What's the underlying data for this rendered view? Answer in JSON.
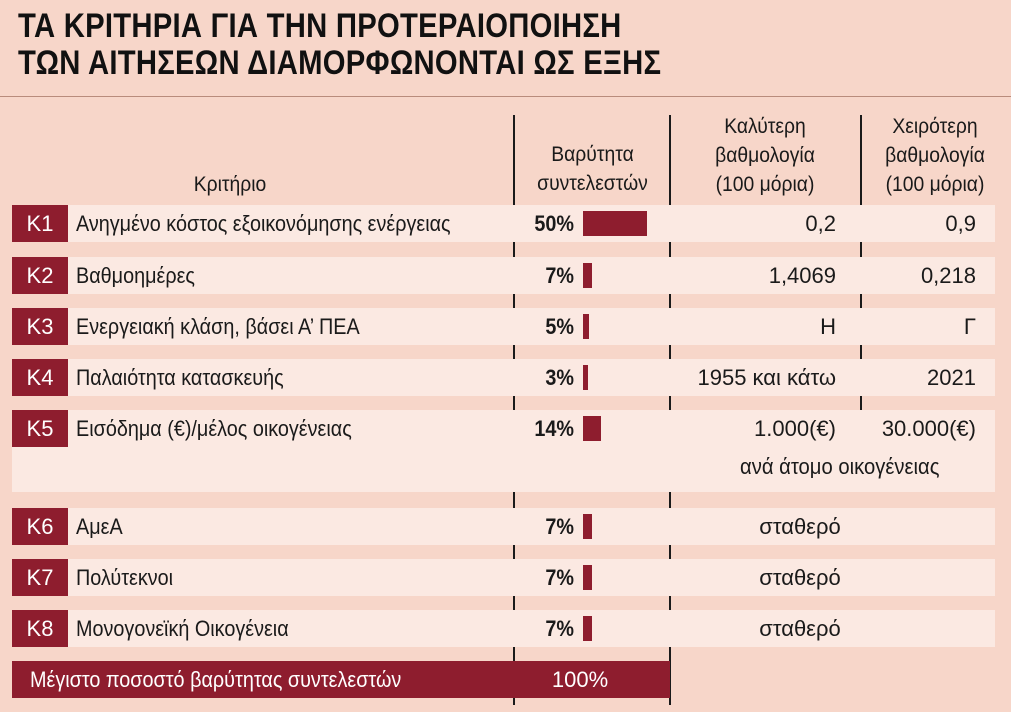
{
  "title": {
    "line1": "ΤΑ ΚΡΙΤΗΡΙΑ ΓΙΑ ΤΗΝ ΠΡΟΤΕΡΑΙΟΠΟΙΗΣΗ",
    "line2": "ΤΩΝ ΑΙΤΗΣΕΩΝ ΔΙΑΜΟΡΦΩΝΟΝΤΑΙ ΩΣ ΕΞΗΣ"
  },
  "headers": {
    "criterion": "Κριτήριο",
    "weight_line1": "Βαρύτητα",
    "weight_line2": "συντελεστών",
    "best_line1": "Καλύτερη",
    "best_line2": "βαθμολογία",
    "best_line3": "(100 μόρια)",
    "worst_line1": "Χειρότερη",
    "worst_line2": "βαθμολογία",
    "worst_line3": "(100 μόρια)"
  },
  "rows": [
    {
      "code": "K1",
      "label": "Ανηγμένο κόστος εξοικονόμησης ενέργειας",
      "weight": "50%",
      "weight_value": 50,
      "best": "0,2",
      "worst": "0,9"
    },
    {
      "code": "K2",
      "label": "Βαθμοημέρες",
      "weight": "7%",
      "weight_value": 7,
      "best": "1,4069",
      "worst": "0,218"
    },
    {
      "code": "K3",
      "label": "Ενεργειακή κλάση, βάσει Α’ ΠΕΑ",
      "weight": "5%",
      "weight_value": 5,
      "best": "Η",
      "worst": "Γ"
    },
    {
      "code": "K4",
      "label": "Παλαιότητα κατασκευής",
      "weight": "3%",
      "weight_value": 3,
      "best": "1955 και κάτω",
      "worst": "2021"
    },
    {
      "code": "K5",
      "label": "Εισόδημα (€)/μέλος οικογένειας",
      "weight": "14%",
      "weight_value": 14,
      "best": "1.000(€)",
      "worst": "30.000(€)",
      "note": "ανά άτομο οικογένειας"
    },
    {
      "code": "K6",
      "label": "ΑμεΑ",
      "weight": "7%",
      "weight_value": 7,
      "fixed": "σταθερό"
    },
    {
      "code": "K7",
      "label": "Πολύτεκνοι",
      "weight": "7%",
      "weight_value": 7,
      "fixed": "σταθερό"
    },
    {
      "code": "K8",
      "label": "Μονογονεϊκή Οικογένεια",
      "weight": "7%",
      "weight_value": 7,
      "fixed": "σταθερό"
    }
  ],
  "footer": {
    "label": "Μέγιστο ποσοστό βαρύτητας συντελεστών",
    "total": "100%"
  },
  "colors": {
    "accent": "#8e1d2e",
    "background": "#f7d6c9",
    "band": "#fbe9e2"
  }
}
